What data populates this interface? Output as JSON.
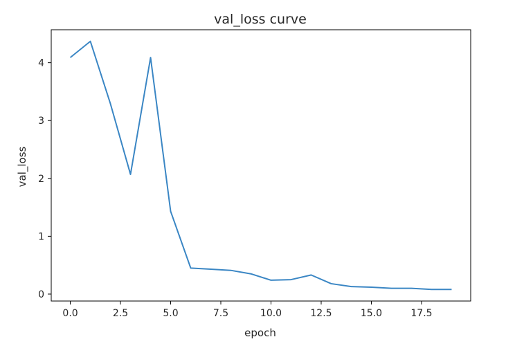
{
  "chart_data": {
    "type": "line",
    "title": "val_loss curve",
    "xlabel": "epoch",
    "ylabel": "val_loss",
    "xlim": [
      -0.95,
      19.95
    ],
    "ylim": [
      -0.12,
      4.57
    ],
    "x_ticks": [
      0.0,
      2.5,
      5.0,
      7.5,
      10.0,
      12.5,
      15.0,
      17.5
    ],
    "x_tick_labels": [
      "0.0",
      "2.5",
      "5.0",
      "7.5",
      "10.0",
      "12.5",
      "15.0",
      "17.5"
    ],
    "y_ticks": [
      0,
      1,
      2,
      3,
      4
    ],
    "y_tick_labels": [
      "0",
      "1",
      "2",
      "3",
      "4"
    ],
    "grid": false,
    "series": [
      {
        "color": "#3a86c4",
        "x": [
          0,
          1,
          2,
          3,
          4,
          5,
          6,
          7,
          8,
          9,
          10,
          11,
          12,
          13,
          14,
          15,
          16,
          17,
          18,
          19
        ],
        "values": [
          4.09,
          4.37,
          3.29,
          2.07,
          4.09,
          1.43,
          0.45,
          0.43,
          0.41,
          0.35,
          0.24,
          0.25,
          0.33,
          0.18,
          0.13,
          0.12,
          0.1,
          0.1,
          0.08,
          0.08
        ]
      }
    ]
  }
}
